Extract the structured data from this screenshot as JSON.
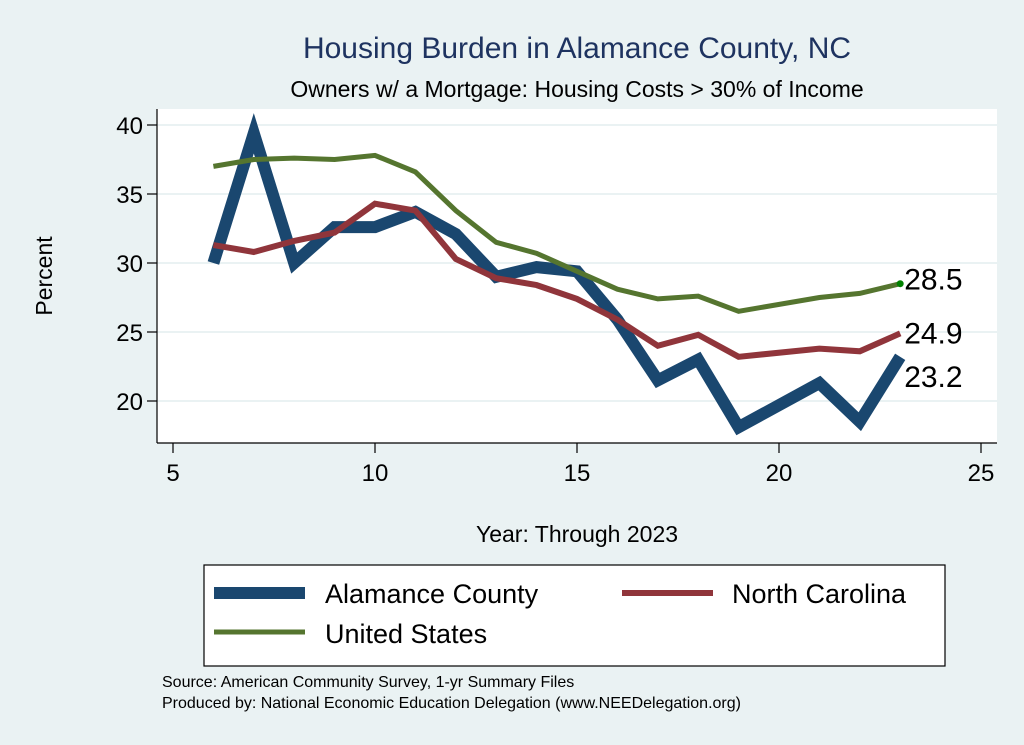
{
  "chart_data": {
    "type": "line",
    "title": "Housing Burden in Alamance County, NC",
    "subtitle": "Owners w/ a Mortgage: Housing Costs > 30% of Income",
    "xlabel": "Year: Through 2023",
    "ylabel": "Percent",
    "xlim": [
      5,
      25
    ],
    "ylim": [
      16.9,
      41.2
    ],
    "xticks": [
      5,
      10,
      15,
      20,
      25
    ],
    "yticks": [
      20,
      25,
      30,
      35,
      40
    ],
    "grid": true,
    "legend_position": "bottom",
    "series": [
      {
        "name": "Alamance County",
        "color": "#1a476f",
        "x": [
          6,
          7,
          8,
          9,
          10,
          11,
          12,
          13,
          14,
          15,
          16,
          17,
          18,
          19,
          21,
          22,
          23
        ],
        "values": [
          30.0,
          39.4,
          30.0,
          32.6,
          32.6,
          33.7,
          32.1,
          29.0,
          29.7,
          29.4,
          25.9,
          21.5,
          23.0,
          18.1,
          21.3,
          18.5,
          23.2
        ],
        "end_label": "23.2"
      },
      {
        "name": "North Carolina",
        "color": "#90353b",
        "x": [
          6,
          7,
          8,
          9,
          10,
          11,
          12,
          13,
          14,
          15,
          16,
          17,
          18,
          19,
          21,
          22,
          23
        ],
        "values": [
          31.3,
          30.8,
          31.6,
          32.2,
          34.3,
          33.8,
          30.3,
          28.9,
          28.4,
          27.4,
          25.9,
          24.0,
          24.8,
          23.2,
          23.8,
          23.6,
          24.9
        ],
        "end_label": "24.9"
      },
      {
        "name": "United States",
        "color": "#55752f",
        "x": [
          6,
          7,
          8,
          9,
          10,
          11,
          12,
          13,
          14,
          15,
          16,
          17,
          18,
          19,
          21,
          22,
          23
        ],
        "values": [
          37.0,
          37.5,
          37.6,
          37.5,
          37.8,
          36.6,
          33.8,
          31.5,
          30.7,
          29.4,
          28.1,
          27.4,
          27.6,
          26.5,
          27.5,
          27.8,
          28.5
        ],
        "end_label": "28.5",
        "end_marker_color": "#008000"
      }
    ],
    "legend": [
      {
        "label": "Alamance County",
        "series": 0
      },
      {
        "label": "North Carolina",
        "series": 1
      },
      {
        "label": "United States",
        "series": 2
      }
    ]
  },
  "notes": {
    "source": "Source: American Community Survey, 1-yr Summary Files",
    "produced_by": "Produced by: National Economic Education Delegation (www.NEEDelegation.org)"
  }
}
